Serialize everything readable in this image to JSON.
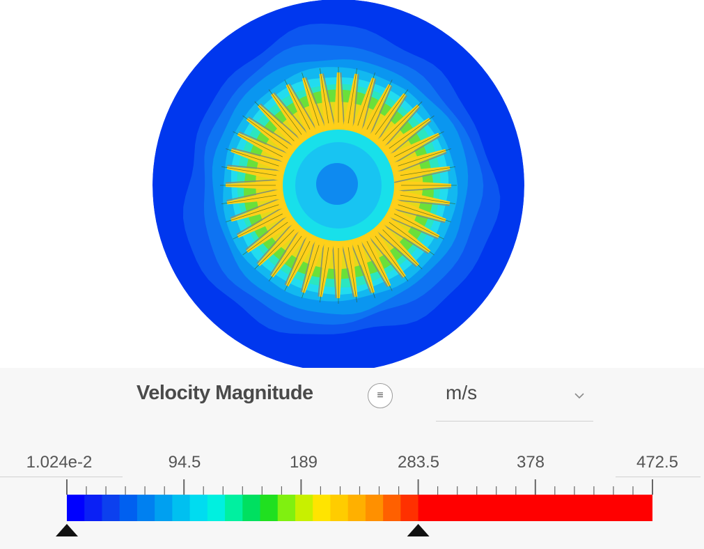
{
  "legend": {
    "title": "Velocity Magnitude",
    "menu_icon": "list-icon",
    "unit": "m/s",
    "unit_dropdown_icon": "chevron-down-icon",
    "tick_labels": [
      "1.024e-2",
      "94.5",
      "189",
      "283.5",
      "378",
      "472.5"
    ],
    "range_min": "1.024e-2",
    "range_max": "472.5",
    "lower_handle_value": 0.01024,
    "upper_handle_value": 283.5,
    "colorbar_colors": [
      "#0000ff",
      "#0a20f5",
      "#0c40ee",
      "#0060f0",
      "#0080f0",
      "#00a0f0",
      "#00c0f0",
      "#00dcf0",
      "#00f0e0",
      "#00f0a0",
      "#00e060",
      "#20e020",
      "#80f010",
      "#c8f000",
      "#ffe400",
      "#ffcc00",
      "#ffb000",
      "#ff9000",
      "#ff6000",
      "#ff3000"
    ],
    "saturation_color": "#ff0000"
  },
  "field": {
    "blade_count": 40,
    "colors": {
      "outer": "#0037ee",
      "level1": "#0c56f0",
      "level2": "#0e73f2",
      "level3": "#0a96f0",
      "level4": "#12b8f0",
      "level5": "#22dcef",
      "level6": "#2be6c0",
      "level7": "#6ae03a",
      "level8": "#e6d81a",
      "blade": "#ffcf1a",
      "hub": "#18e0ea",
      "hub_inner": "#18c4f2",
      "hub_core": "#0e8af0"
    }
  }
}
